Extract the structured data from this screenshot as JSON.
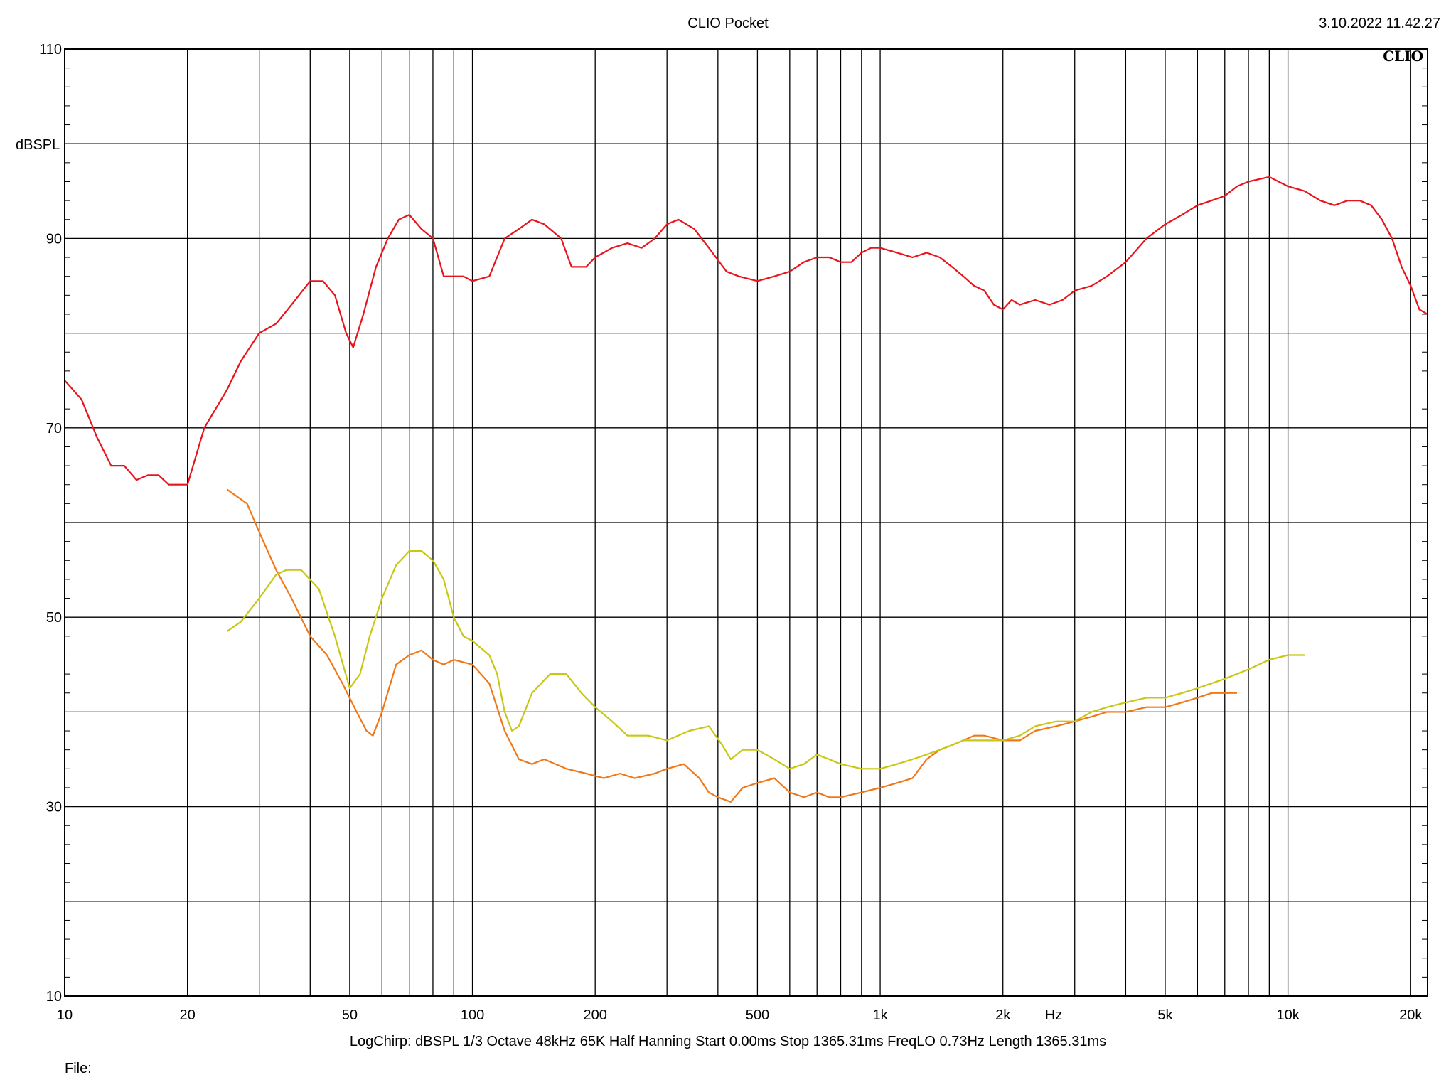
{
  "header": {
    "title": "CLIO Pocket",
    "timestamp": "3.10.2022 11.42.27",
    "logo": "CLIO"
  },
  "footer": {
    "params": "LogChirp:  dBSPL   1/3 Octave   48kHz   65K   Half Hanning   Start 0.00ms     Stop 1365.31ms     FreqLO 0.73Hz     Length 1365.31ms",
    "file_label": "File:"
  },
  "colors": {
    "background": "#ffffff",
    "grid": "#000000",
    "series_red": "#e8141c",
    "series_orange": "#f07818",
    "series_yellow": "#c8c814"
  },
  "chart_data": {
    "type": "line",
    "x_scale": "log",
    "xlim": [
      10,
      22000
    ],
    "ylim": [
      10,
      110
    ],
    "ylabel": "dBSPL",
    "xlabel": "Hz",
    "grid": true,
    "x_ticks": [
      {
        "value": 10,
        "label": "10"
      },
      {
        "value": 20,
        "label": "20"
      },
      {
        "value": 50,
        "label": "50"
      },
      {
        "value": 100,
        "label": "100"
      },
      {
        "value": 200,
        "label": "200"
      },
      {
        "value": 500,
        "label": "500"
      },
      {
        "value": 1000,
        "label": "1k"
      },
      {
        "value": 2000,
        "label": "2k"
      },
      {
        "value": 5000,
        "label": "5k"
      },
      {
        "value": 10000,
        "label": "10k"
      },
      {
        "value": 20000,
        "label": "20k"
      }
    ],
    "y_ticks": [
      {
        "value": 110,
        "label": "110"
      },
      {
        "value": 90,
        "label": "90"
      },
      {
        "value": 70,
        "label": "70"
      },
      {
        "value": 50,
        "label": "50"
      },
      {
        "value": 30,
        "label": "30"
      },
      {
        "value": 10,
        "label": "10"
      }
    ],
    "series": [
      {
        "color": "#e8141c",
        "points": [
          [
            10,
            75
          ],
          [
            11,
            73
          ],
          [
            12,
            69
          ],
          [
            13,
            66
          ],
          [
            14,
            66
          ],
          [
            15,
            64.5
          ],
          [
            16,
            65
          ],
          [
            17,
            65
          ],
          [
            18,
            64
          ],
          [
            20,
            64
          ],
          [
            22,
            70
          ],
          [
            25,
            74
          ],
          [
            27,
            77
          ],
          [
            30,
            80
          ],
          [
            33,
            81
          ],
          [
            36,
            83
          ],
          [
            40,
            85.5
          ],
          [
            43,
            85.5
          ],
          [
            46,
            84
          ],
          [
            49,
            80
          ],
          [
            51,
            78.5
          ],
          [
            54,
            82
          ],
          [
            58,
            87
          ],
          [
            62,
            90
          ],
          [
            66,
            92
          ],
          [
            70,
            92.5
          ],
          [
            75,
            91
          ],
          [
            80,
            90
          ],
          [
            85,
            86
          ],
          [
            90,
            86
          ],
          [
            95,
            86
          ],
          [
            100,
            85.5
          ],
          [
            110,
            86
          ],
          [
            120,
            90
          ],
          [
            130,
            91
          ],
          [
            140,
            92
          ],
          [
            150,
            91.5
          ],
          [
            165,
            90
          ],
          [
            175,
            87
          ],
          [
            190,
            87
          ],
          [
            200,
            88
          ],
          [
            220,
            89
          ],
          [
            240,
            89.5
          ],
          [
            260,
            89
          ],
          [
            280,
            90
          ],
          [
            300,
            91.5
          ],
          [
            320,
            92
          ],
          [
            350,
            91
          ],
          [
            380,
            89
          ],
          [
            420,
            86.5
          ],
          [
            450,
            86
          ],
          [
            500,
            85.5
          ],
          [
            550,
            86
          ],
          [
            600,
            86.5
          ],
          [
            650,
            87.5
          ],
          [
            700,
            88
          ],
          [
            750,
            88
          ],
          [
            800,
            87.5
          ],
          [
            850,
            87.5
          ],
          [
            900,
            88.5
          ],
          [
            950,
            89
          ],
          [
            1000,
            89
          ],
          [
            1100,
            88.5
          ],
          [
            1200,
            88
          ],
          [
            1300,
            88.5
          ],
          [
            1400,
            88
          ],
          [
            1500,
            87
          ],
          [
            1600,
            86
          ],
          [
            1700,
            85
          ],
          [
            1800,
            84.5
          ],
          [
            1900,
            83
          ],
          [
            2000,
            82.5
          ],
          [
            2100,
            83.5
          ],
          [
            2200,
            83
          ],
          [
            2400,
            83.5
          ],
          [
            2600,
            83
          ],
          [
            2800,
            83.5
          ],
          [
            3000,
            84.5
          ],
          [
            3300,
            85
          ],
          [
            3600,
            86
          ],
          [
            4000,
            87.5
          ],
          [
            4500,
            90
          ],
          [
            5000,
            91.5
          ],
          [
            5500,
            92.5
          ],
          [
            6000,
            93.5
          ],
          [
            6500,
            94
          ],
          [
            7000,
            94.5
          ],
          [
            7500,
            95.5
          ],
          [
            8000,
            96
          ],
          [
            9000,
            96.5
          ],
          [
            10000,
            95.5
          ],
          [
            11000,
            95
          ],
          [
            12000,
            94
          ],
          [
            13000,
            93.5
          ],
          [
            14000,
            94
          ],
          [
            15000,
            94
          ],
          [
            16000,
            93.5
          ],
          [
            17000,
            92
          ],
          [
            18000,
            90
          ],
          [
            19000,
            87
          ],
          [
            20000,
            85
          ],
          [
            21000,
            82.5
          ],
          [
            22000,
            82
          ]
        ]
      },
      {
        "color": "#f07818",
        "points": [
          [
            25,
            63.5
          ],
          [
            28,
            62
          ],
          [
            30,
            59
          ],
          [
            33,
            55
          ],
          [
            36,
            52
          ],
          [
            40,
            48
          ],
          [
            44,
            46
          ],
          [
            48,
            43
          ],
          [
            52,
            40
          ],
          [
            55,
            38
          ],
          [
            57,
            37.5
          ],
          [
            60,
            40
          ],
          [
            65,
            45
          ],
          [
            70,
            46
          ],
          [
            75,
            46.5
          ],
          [
            80,
            45.5
          ],
          [
            85,
            45
          ],
          [
            90,
            45.5
          ],
          [
            100,
            45
          ],
          [
            110,
            43
          ],
          [
            120,
            38
          ],
          [
            130,
            35
          ],
          [
            140,
            34.5
          ],
          [
            150,
            35
          ],
          [
            170,
            34
          ],
          [
            190,
            33.5
          ],
          [
            210,
            33
          ],
          [
            230,
            33.5
          ],
          [
            250,
            33
          ],
          [
            280,
            33.5
          ],
          [
            300,
            34
          ],
          [
            330,
            34.5
          ],
          [
            360,
            33
          ],
          [
            380,
            31.5
          ],
          [
            400,
            31
          ],
          [
            430,
            30.5
          ],
          [
            460,
            32
          ],
          [
            500,
            32.5
          ],
          [
            550,
            33
          ],
          [
            600,
            31.5
          ],
          [
            650,
            31
          ],
          [
            700,
            31.5
          ],
          [
            750,
            31
          ],
          [
            800,
            31
          ],
          [
            900,
            31.5
          ],
          [
            1000,
            32
          ],
          [
            1100,
            32.5
          ],
          [
            1200,
            33
          ],
          [
            1300,
            35
          ],
          [
            1400,
            36
          ],
          [
            1500,
            36.5
          ],
          [
            1600,
            37
          ],
          [
            1700,
            37.5
          ],
          [
            1800,
            37.5
          ],
          [
            2000,
            37
          ],
          [
            2200,
            37
          ],
          [
            2400,
            38
          ],
          [
            2700,
            38.5
          ],
          [
            3000,
            39
          ],
          [
            3300,
            39.5
          ],
          [
            3600,
            40
          ],
          [
            4000,
            40
          ],
          [
            4500,
            40.5
          ],
          [
            5000,
            40.5
          ],
          [
            5500,
            41
          ],
          [
            6000,
            41.5
          ],
          [
            6500,
            42
          ],
          [
            7000,
            42
          ],
          [
            7500,
            42
          ]
        ]
      },
      {
        "color": "#c8c814",
        "points": [
          [
            25,
            48.5
          ],
          [
            27,
            49.5
          ],
          [
            30,
            52
          ],
          [
            33,
            54.5
          ],
          [
            35,
            55
          ],
          [
            38,
            55
          ],
          [
            42,
            53
          ],
          [
            46,
            48
          ],
          [
            50,
            42.5
          ],
          [
            53,
            44
          ],
          [
            56,
            48
          ],
          [
            60,
            52
          ],
          [
            65,
            55.5
          ],
          [
            70,
            57
          ],
          [
            75,
            57
          ],
          [
            80,
            56
          ],
          [
            85,
            54
          ],
          [
            90,
            50
          ],
          [
            95,
            48
          ],
          [
            100,
            47.5
          ],
          [
            110,
            46
          ],
          [
            115,
            44
          ],
          [
            120,
            40
          ],
          [
            125,
            38
          ],
          [
            130,
            38.5
          ],
          [
            140,
            42
          ],
          [
            155,
            44
          ],
          [
            170,
            44
          ],
          [
            185,
            42
          ],
          [
            200,
            40.5
          ],
          [
            220,
            39
          ],
          [
            240,
            37.5
          ],
          [
            270,
            37.5
          ],
          [
            300,
            37
          ],
          [
            340,
            38
          ],
          [
            380,
            38.5
          ],
          [
            410,
            36.5
          ],
          [
            430,
            35
          ],
          [
            460,
            36
          ],
          [
            500,
            36
          ],
          [
            550,
            35
          ],
          [
            600,
            34
          ],
          [
            650,
            34.5
          ],
          [
            700,
            35.5
          ],
          [
            750,
            35
          ],
          [
            800,
            34.5
          ],
          [
            900,
            34
          ],
          [
            1000,
            34
          ],
          [
            1100,
            34.5
          ],
          [
            1200,
            35
          ],
          [
            1300,
            35.5
          ],
          [
            1400,
            36
          ],
          [
            1500,
            36.5
          ],
          [
            1600,
            37
          ],
          [
            1700,
            37
          ],
          [
            1800,
            37
          ],
          [
            2000,
            37
          ],
          [
            2200,
            37.5
          ],
          [
            2400,
            38.5
          ],
          [
            2700,
            39
          ],
          [
            3000,
            39
          ],
          [
            3300,
            40
          ],
          [
            3600,
            40.5
          ],
          [
            4000,
            41
          ],
          [
            4500,
            41.5
          ],
          [
            5000,
            41.5
          ],
          [
            5500,
            42
          ],
          [
            6000,
            42.5
          ],
          [
            7000,
            43.5
          ],
          [
            8000,
            44.5
          ],
          [
            9000,
            45.5
          ],
          [
            10000,
            46
          ],
          [
            11000,
            46
          ]
        ]
      }
    ]
  }
}
